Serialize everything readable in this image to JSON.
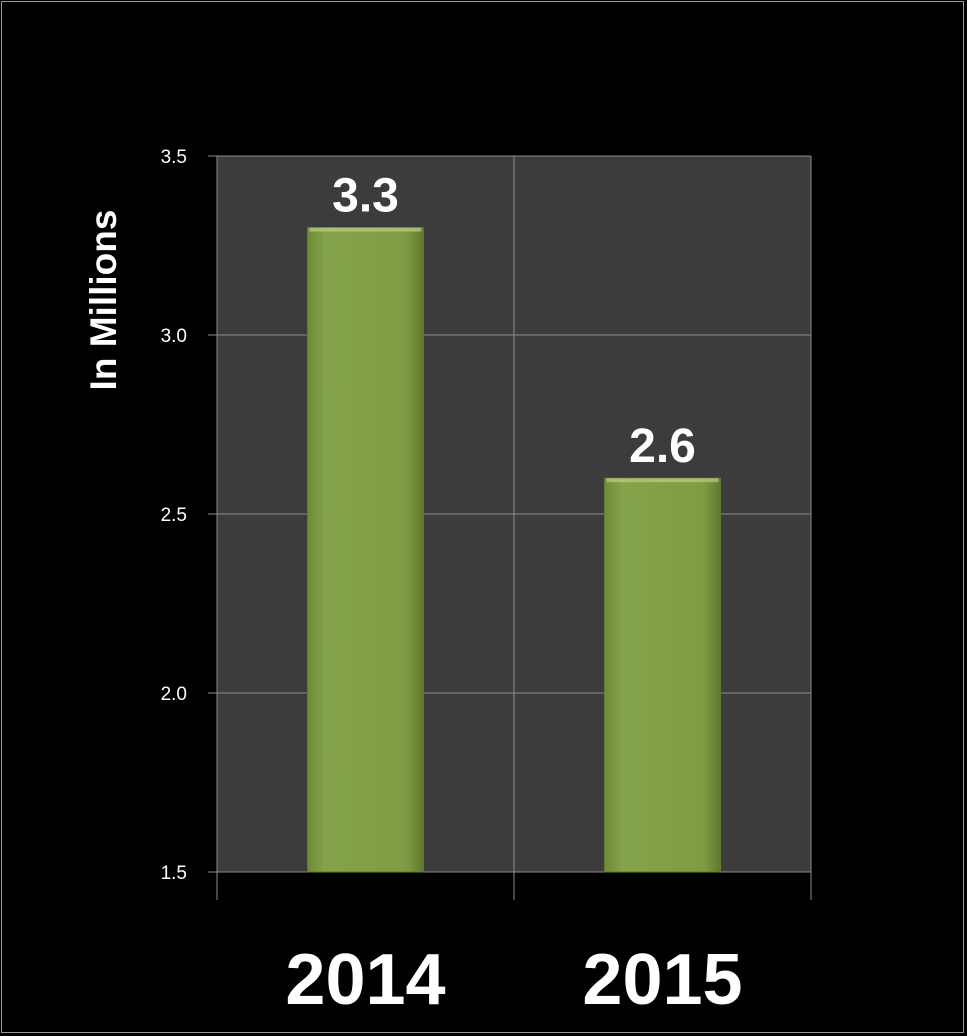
{
  "chart_data": {
    "type": "bar",
    "title": "",
    "xlabel": "",
    "ylabel": "In Millions",
    "categories": [
      "2014",
      "2015"
    ],
    "values": [
      3.3,
      2.6
    ],
    "data_labels": [
      "3.3",
      "2.6"
    ],
    "ylim": [
      1.5,
      3.5
    ],
    "yticks": [
      1.5,
      2.0,
      2.5,
      3.0,
      3.5
    ],
    "ytick_labels": [
      "1.5",
      "2.0",
      "2.5",
      "3.0",
      "3.5"
    ],
    "grid": true,
    "legend": "none",
    "colors": {
      "background": "#000000",
      "plot_area": "#3c3c3c",
      "bar": "#7f9c43",
      "grid": "#8c8c8c",
      "text": "#ffffff"
    }
  }
}
